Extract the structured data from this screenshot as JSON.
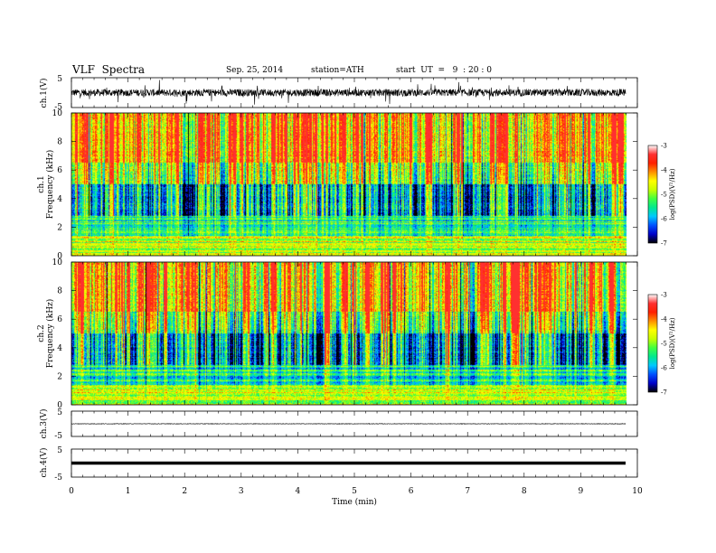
{
  "header": {
    "title": "VLF  Spectra",
    "date": "Sep. 25, 2014",
    "station": "station=ATH",
    "start": "start  UT  =   9  : 20 : 0"
  },
  "chart_data": {
    "type": "heatmap",
    "xlabel": "Time  (min)",
    "xlim": [
      0,
      10
    ],
    "x_ticks": [
      "0",
      "1",
      "2",
      "3",
      "4",
      "5",
      "6",
      "7",
      "8",
      "9",
      "10"
    ],
    "data_end_min": 9.8,
    "panels": [
      {
        "id": "ch1-waveform",
        "type": "line",
        "ylabel": "ch.1(V)",
        "ylim": [
          -5,
          5
        ],
        "y_ticks": [
          "5",
          "-5"
        ],
        "baseline_v": 0.0,
        "amplitude_v": 1.2
      },
      {
        "id": "ch1-spectrogram",
        "type": "heatmap",
        "ylabel": "ch.1\nFrequency  (kHz)",
        "ylim": [
          0,
          10
        ],
        "y_ticks": [
          "0",
          "2",
          "4",
          "6",
          "8",
          "10"
        ],
        "colorbar": {
          "label": "log(PSD)(V²/Hz)",
          "range": [
            -7,
            -3
          ],
          "ticks": [
            "-3",
            "-4",
            "-5",
            "-6",
            "-7"
          ]
        }
      },
      {
        "id": "ch2-spectrogram",
        "type": "heatmap",
        "ylabel": "ch.2\nFrequency  (kHz)",
        "ylim": [
          0,
          10
        ],
        "y_ticks": [
          "0",
          "2",
          "4",
          "6",
          "8",
          "10"
        ],
        "colorbar": {
          "label": "log(PSD)(V²/Hz)",
          "range": [
            -7,
            -3
          ],
          "ticks": [
            "-3",
            "-4",
            "-5",
            "-6",
            "-7"
          ]
        }
      },
      {
        "id": "ch3-waveform",
        "type": "line",
        "ylabel": "ch.3(V)",
        "ylim": [
          -5,
          5
        ],
        "y_ticks": [
          "5",
          "-5"
        ],
        "baseline_v": 0.0,
        "amplitude_v": 0.1
      },
      {
        "id": "ch4-waveform",
        "type": "line",
        "ylabel": "ch.4(V)",
        "ylim": [
          -5,
          5
        ],
        "y_ticks": [
          "5",
          "-5"
        ],
        "baseline_v": 0.0,
        "amplitude_v": 0.0
      }
    ]
  },
  "colors": {
    "colormap": [
      "#000000",
      "#0000c8",
      "#0050ff",
      "#00c8ff",
      "#00e890",
      "#40ff40",
      "#c8ff00",
      "#ffff00",
      "#ff9000",
      "#ff2000",
      "#ff3030",
      "#ffffff"
    ]
  }
}
